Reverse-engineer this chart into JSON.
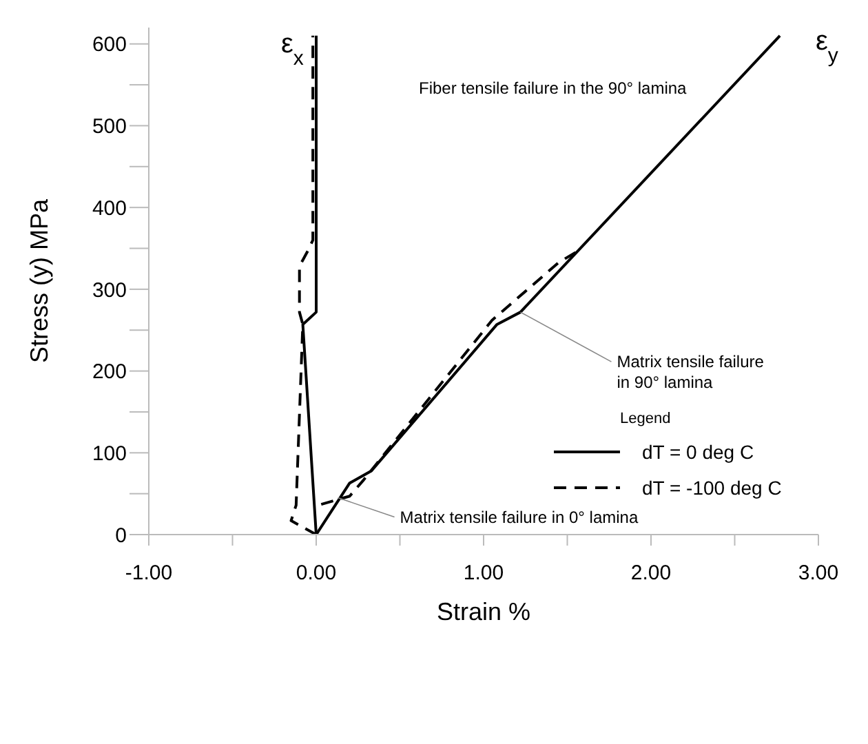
{
  "chart_data": {
    "type": "line",
    "xlabel": "Strain %",
    "ylabel": "Stress (y) MPa",
    "legend_title": "Legend",
    "xlim": [
      -1,
      3
    ],
    "ylim": [
      0,
      620
    ],
    "xticks": [
      {
        "value": -1,
        "label": "-1.00"
      },
      {
        "value": -0.5,
        "label": null
      },
      {
        "value": 0,
        "label": "0.00"
      },
      {
        "value": 0.5,
        "label": null
      },
      {
        "value": 1,
        "label": "1.00"
      },
      {
        "value": 1.5,
        "label": null
      },
      {
        "value": 2,
        "label": "2.00"
      },
      {
        "value": 2.5,
        "label": null
      },
      {
        "value": 3,
        "label": "3.00"
      }
    ],
    "yticks": [
      0,
      {
        "value": 50,
        "label": null
      },
      100,
      {
        "value": 150,
        "label": null
      },
      200,
      {
        "value": 250,
        "label": null
      },
      300,
      {
        "value": 350,
        "label": null
      },
      400,
      {
        "value": 450,
        "label": null
      },
      500,
      {
        "value": 550,
        "label": null
      },
      600
    ],
    "grid": false,
    "legend": "right",
    "marker": "none",
    "series": [
      {
        "name": "dT = 0 deg C",
        "color": "#000000",
        "line_style": "solid",
        "x": [
          0,
          -0.08,
          0,
          0
        ],
        "values": [
          0,
          257,
          272,
          610
        ]
      },
      {
        "name": "dT = -100 deg C",
        "color": "#000000",
        "line_style": "dashed",
        "x": [
          0,
          -0.15,
          -0.12,
          -0.08,
          -0.1,
          -0.1,
          -0.05,
          -0.02,
          -0.02
        ],
        "values": [
          0,
          17,
          36,
          257,
          272,
          328,
          347,
          360,
          610
        ]
      },
      {
        "color": "#000000",
        "line_style": "solid",
        "x": [
          0,
          0.2,
          0.33,
          1.08,
          1.22,
          2.77
        ],
        "values": [
          0,
          63,
          78,
          257,
          272,
          610
        ]
      },
      {
        "color": "#000000",
        "line_style": "dashed",
        "x": [
          0.03,
          0.2,
          0.28,
          1.05,
          1.45,
          1.55
        ],
        "values": [
          37,
          47,
          66,
          262,
          333,
          345
        ]
      }
    ],
    "annotations": [
      "ε$_{x}$",
      "ε$_{y}$",
      "Fiber tensile failure in the 90° lamina",
      {
        "text": "Matrix tensile failure in 0° lamina",
        "x": 0.13,
        "y": 45
      },
      {
        "text": "Matrix tensile failure\nin 90° lamina",
        "x": 1.22,
        "y": 272
      }
    ]
  }
}
